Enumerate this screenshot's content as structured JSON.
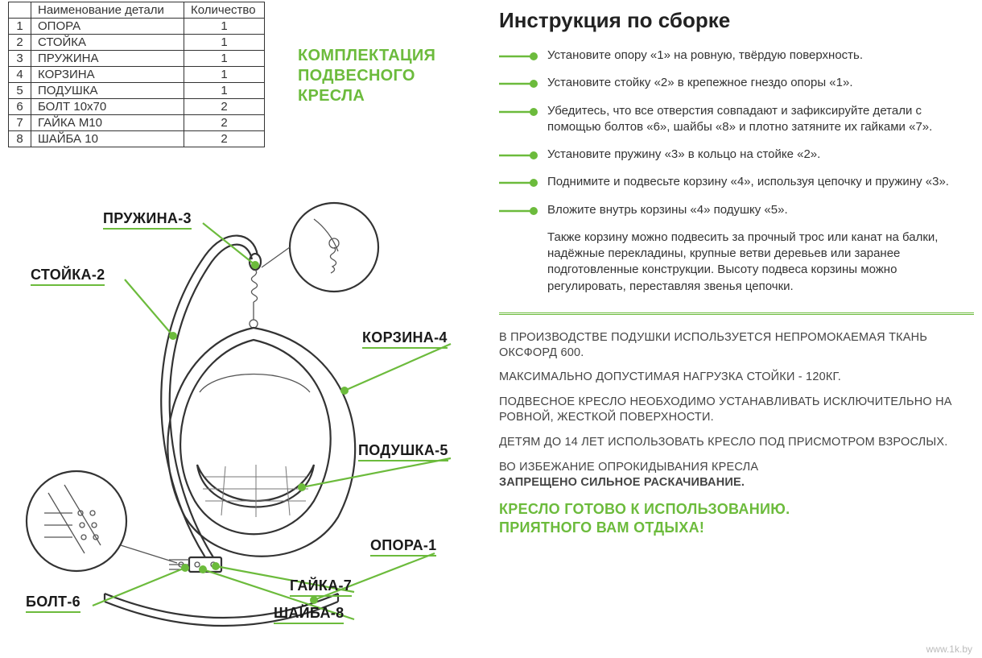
{
  "colors": {
    "accent": "#6cbb3c",
    "text": "#333333",
    "border": "#333333"
  },
  "table": {
    "headers": {
      "name": "Наименование детали",
      "qty": "Количество"
    },
    "rows": [
      {
        "n": "1",
        "name": "ОПОРА",
        "qty": "1"
      },
      {
        "n": "2",
        "name": "СТОЙКА",
        "qty": "1"
      },
      {
        "n": "3",
        "name": "ПРУЖИНА",
        "qty": "1"
      },
      {
        "n": "4",
        "name": "КОРЗИНА",
        "qty": "1"
      },
      {
        "n": "5",
        "name": "ПОДУШКА",
        "qty": "1"
      },
      {
        "n": "6",
        "name": "БОЛТ 10x70",
        "qty": "2"
      },
      {
        "n": "7",
        "name": "ГАЙКА M10",
        "qty": "2"
      },
      {
        "n": "8",
        "name": "ШАЙБА 10",
        "qty": "2"
      }
    ]
  },
  "green_title": "КОМПЛЕКТАЦИЯ ПОДВЕСНОГО КРЕСЛА",
  "callouts": {
    "spring": "ПРУЖИНА-3",
    "stand": "СТОЙКА-2",
    "basket": "КОРЗИНА-4",
    "cushion": "ПОДУШКА-5",
    "base": "ОПОРА-1",
    "bolt": "БОЛТ-6",
    "nut": "ГАЙКА-7",
    "washer": "ШАЙБА-8"
  },
  "instr_title": "Инструкция по сборке",
  "steps": [
    "Установите опору «1» на ровную, твёрдую поверхность.",
    "Установите стойку «2» в крепежное гнездо опоры «1».",
    "Убедитесь, что все отверстия совпадают и зафиксируйте детали с помощью болтов «6», шайбы «8» и плотно затяните их гайками «7».",
    "Установите пружину «3» в кольцо на стойке «2».",
    "Поднимите и подвесьте корзину «4», используя цепочку и пружину «3».",
    "Вложите внутрь корзины «4» подушку «5»."
  ],
  "note": "Также корзину можно подвесить за прочный трос или канат на балки, надёжные перекладины, крупные ветви деревьев или заранее подготовленные конструкции. Высоту подвеса корзины можно регулировать, переставляя звенья цепочки.",
  "warnings": [
    "В ПРОИЗВОДСТВЕ ПОДУШКИ ИСПОЛЬЗУЕТСЯ НЕПРОМОКАЕМАЯ ТКАНЬ ОКСФОРД 600.",
    "МАКСИМАЛЬНО ДОПУСТИМАЯ НАГРУЗКА СТОЙКИ - 120КГ.",
    "ПОДВЕСНОЕ КРЕСЛО НЕОБХОДИМО УСТАНАВЛИВАТЬ ИСКЛЮЧИТЕЛЬНО НА РОВНОЙ, ЖЕСТКОЙ ПОВЕРХНОСТИ.",
    "ДЕТЯМ ДО 14 ЛЕТ ИСПОЛЬЗОВАТЬ КРЕСЛО ПОД ПРИСМОТРОМ ВЗРОСЛЫХ."
  ],
  "warning_bold": {
    "pre": "ВО ИЗБЕЖАНИЕ ОПРОКИДЫВАНИЯ КРЕСЛА",
    "bold": "ЗАПРЕЩЕНО СИЛЬНОЕ РАСКАЧИВАНИЕ."
  },
  "ready": {
    "l1": "КРЕСЛО ГОТОВО К ИСПОЛЬЗОВАНИЮ.",
    "l2": "ПРИЯТНОГО ВАМ ОТДЫХА!"
  },
  "watermark": "www.1k.by"
}
